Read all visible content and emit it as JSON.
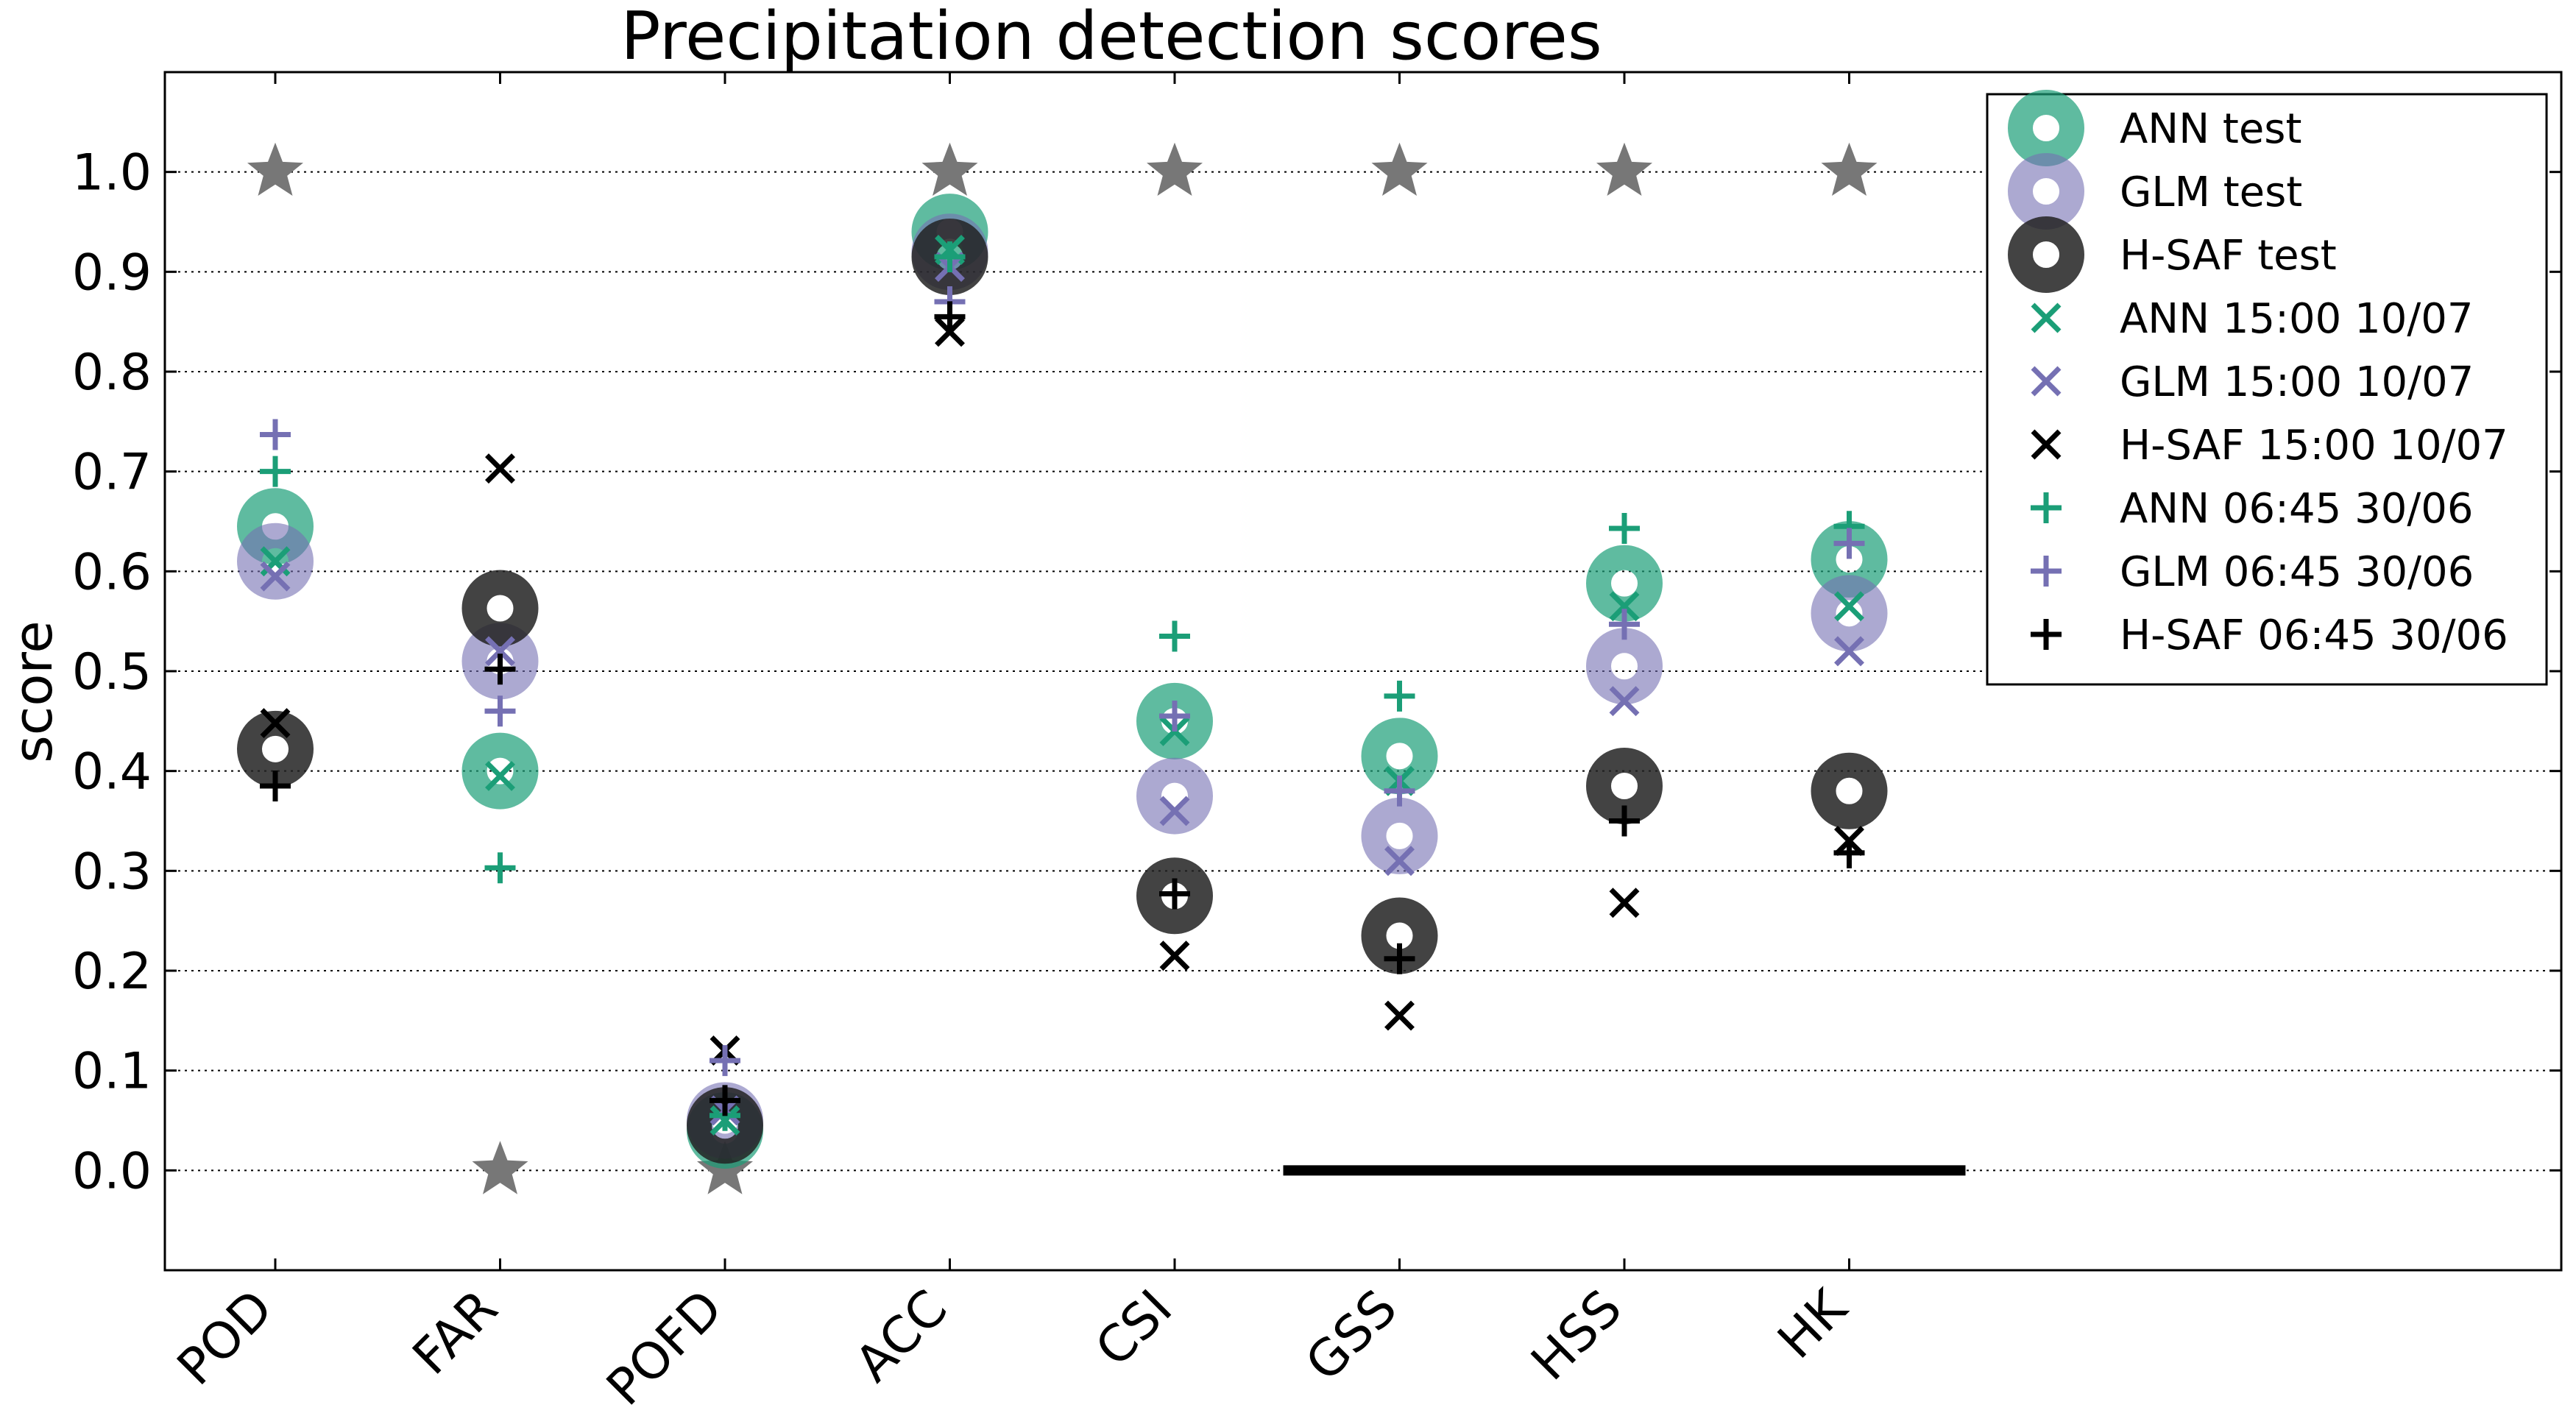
{
  "chart_data": {
    "type": "scatter",
    "title": "Precipitation detection scores",
    "ylabel": "score",
    "xlabel": "",
    "categories": [
      "POD",
      "FAR",
      "POFD",
      "ACC",
      "CSI",
      "GSS",
      "HSS",
      "HK"
    ],
    "ylim": [
      -0.1,
      1.1
    ],
    "y_ticks": [
      0.0,
      0.1,
      0.2,
      0.3,
      0.4,
      0.5,
      0.6,
      0.7,
      0.8,
      0.9,
      1.0
    ],
    "grid": "horizontal dotted",
    "legend_position": "top-right",
    "perfect_scores": {
      "marker": "star",
      "color": "#777777",
      "values": [
        1.0,
        0.0,
        0.0,
        1.0,
        1.0,
        1.0,
        1.0,
        1.0
      ]
    },
    "zero_line": {
      "from_category": "GSS",
      "to_category": "HK",
      "y": 0.0
    },
    "series": [
      {
        "name": "ANN test",
        "marker": "ring",
        "color": "#1b9e77",
        "alpha": 0.7,
        "values": [
          0.645,
          0.4,
          0.04,
          0.94,
          0.45,
          0.415,
          0.588,
          0.612
        ]
      },
      {
        "name": "GLM test",
        "marker": "ring",
        "color": "#7570b3",
        "alpha": 0.6,
        "values": [
          0.61,
          0.51,
          0.05,
          0.92,
          0.375,
          0.335,
          0.505,
          0.558
        ]
      },
      {
        "name": "H-SAF test",
        "marker": "ring",
        "color": "#222222",
        "alpha": 0.85,
        "values": [
          0.422,
          0.563,
          0.045,
          0.915,
          0.275,
          0.235,
          0.385,
          0.38
        ]
      },
      {
        "name": "ANN 15:00 10/07",
        "marker": "x",
        "color": "#1b9e77",
        "values": [
          0.61,
          0.395,
          0.05,
          0.922,
          0.44,
          0.39,
          0.565,
          0.565
        ]
      },
      {
        "name": "GLM 15:00 10/07",
        "marker": "x",
        "color": "#7570b3",
        "values": [
          0.595,
          0.52,
          0.06,
          0.905,
          0.36,
          0.31,
          0.47,
          0.52
        ]
      },
      {
        "name": "H-SAF 15:00 10/07",
        "marker": "x",
        "color": "#000000",
        "values": [
          0.448,
          0.703,
          0.12,
          0.84,
          0.215,
          0.155,
          0.268,
          0.33
        ]
      },
      {
        "name": "ANN 06:45 30/06",
        "marker": "plus",
        "color": "#1b9e77",
        "values": [
          0.7,
          0.303,
          0.055,
          0.915,
          0.535,
          0.475,
          0.643,
          0.645
        ]
      },
      {
        "name": "GLM 06:45 30/06",
        "marker": "plus",
        "color": "#7570b3",
        "values": [
          0.737,
          0.46,
          0.11,
          0.87,
          0.455,
          0.38,
          0.547,
          0.628
        ]
      },
      {
        "name": "H-SAF 06:45 30/06",
        "marker": "plus",
        "color": "#000000",
        "values": [
          0.385,
          0.502,
          0.07,
          0.855,
          0.277,
          0.212,
          0.35,
          0.318
        ]
      }
    ]
  }
}
